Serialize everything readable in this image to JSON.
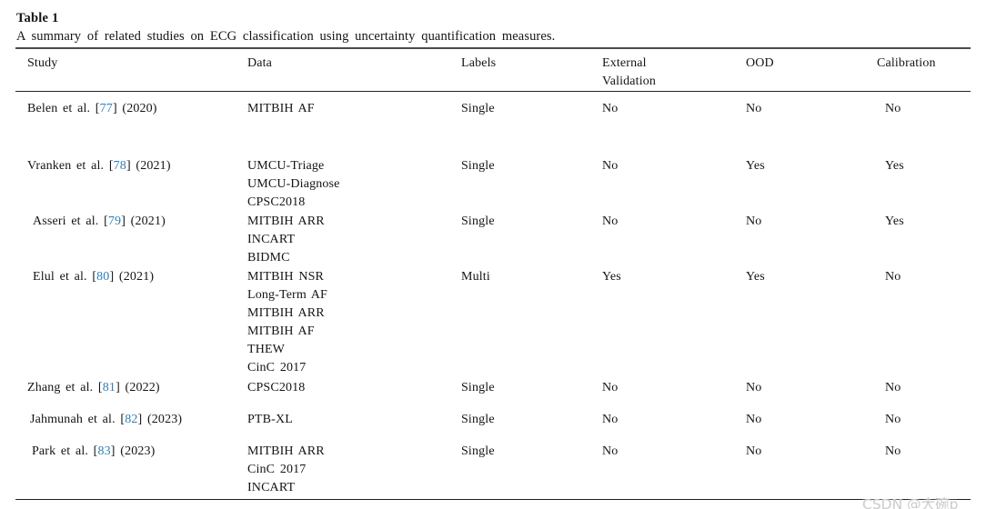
{
  "caption": {
    "label": "Table 1",
    "text": "A summary of related studies on ECG classification using uncertainty quantification measures."
  },
  "table": {
    "headers": [
      {
        "line1": "Study",
        "line2": ""
      },
      {
        "line1": "Data",
        "line2": ""
      },
      {
        "line1": "Labels",
        "line2": ""
      },
      {
        "line1": "External",
        "line2": "Validation"
      },
      {
        "line1": "OOD",
        "line2": ""
      },
      {
        "line1": "Calibration",
        "line2": ""
      }
    ],
    "rows": [
      {
        "study_pre": "Belen et al. [",
        "study_ref": "77",
        "study_post": "] (2020)",
        "data": "MITBIH AF",
        "labels": "Single",
        "external_validation": "No",
        "ood": "No",
        "calibration": "No"
      },
      {
        "study_pre": "Vranken et al. [",
        "study_ref": "78",
        "study_post": "] (2021)",
        "data": "UMCU-Triage\nUMCU-Diagnose\nCPSC2018",
        "labels": "Single",
        "external_validation": "No",
        "ood": "Yes",
        "calibration": "Yes"
      },
      {
        "study_pre": "Asseri et al. [",
        "study_ref": "79",
        "study_post": "] (2021)",
        "data": "MITBIH ARR\nINCART\nBIDMC",
        "labels": "Single",
        "external_validation": "No",
        "ood": "No",
        "calibration": "Yes"
      },
      {
        "study_pre": "Elul et al. [",
        "study_ref": "80",
        "study_post": "] (2021)",
        "data": "MITBIH NSR\nLong-Term AF\nMITBIH ARR\nMITBIH AF\nTHEW\nCinC 2017",
        "labels": "Multi",
        "external_validation": "Yes",
        "ood": "Yes",
        "calibration": "No"
      },
      {
        "study_pre": "Zhang et al. [",
        "study_ref": "81",
        "study_post": "] (2022)",
        "data": "CPSC2018",
        "labels": "Single",
        "external_validation": "No",
        "ood": "No",
        "calibration": "No"
      },
      {
        "study_pre": "Jahmunah et al. [",
        "study_ref": "82",
        "study_post": "] (2023)",
        "data": "PTB-XL",
        "labels": "Single",
        "external_validation": "No",
        "ood": "No",
        "calibration": "No"
      },
      {
        "study_pre": "Park et al. [",
        "study_ref": "83",
        "study_post": "] (2023)",
        "data": "MITBIH ARR\nCinC 2017\nINCART",
        "labels": "Single",
        "external_validation": "No",
        "ood": "No",
        "calibration": "No"
      }
    ]
  },
  "colors": {
    "citation_blue": "#2d7fb8",
    "top_rule": "#4a4a4a",
    "rule_dark": "#1f1f1f",
    "watermark_gray": "#cbcbcb"
  },
  "watermark": {
    "text": "CSDN @大碗p"
  }
}
